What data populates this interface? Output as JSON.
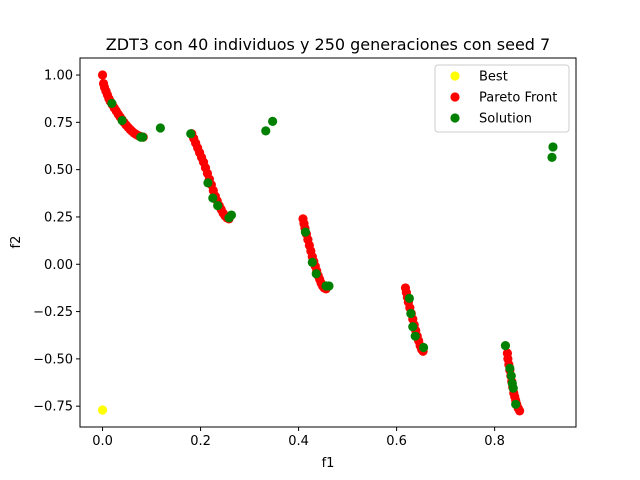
{
  "chart_data": {
    "type": "scatter",
    "title": "ZDT3 con 40 individuos y 250 generaciones con seed 7",
    "xlabel": "f1",
    "ylabel": "f2",
    "xlim": [
      -0.046,
      0.966
    ],
    "ylim": [
      -0.86,
      1.09
    ],
    "xticks": [
      0.0,
      0.2,
      0.4,
      0.6,
      0.8
    ],
    "xtick_labels": [
      "0.0",
      "0.2",
      "0.4",
      "0.6",
      "0.8"
    ],
    "yticks": [
      -0.75,
      -0.5,
      -0.25,
      0.0,
      0.25,
      0.5,
      0.75,
      1.0
    ],
    "ytick_labels": [
      "−0.75",
      "−0.50",
      "−0.25",
      "0.00",
      "0.25",
      "0.50",
      "0.75",
      "1.00"
    ],
    "grid": false,
    "legend_position": "top-right",
    "series": [
      {
        "name": "Best",
        "color": "#ffff00",
        "points": [
          [
            0.0,
            -0.77
          ]
        ]
      },
      {
        "name": "Pareto Front",
        "color": "#ff0000",
        "points": [
          [
            0.0,
            1.0
          ],
          [
            0.002,
            0.955
          ],
          [
            0.004,
            0.935
          ],
          [
            0.007,
            0.915
          ],
          [
            0.01,
            0.895
          ],
          [
            0.013,
            0.875
          ],
          [
            0.016,
            0.86
          ],
          [
            0.02,
            0.843
          ],
          [
            0.024,
            0.826
          ],
          [
            0.028,
            0.81
          ],
          [
            0.032,
            0.793
          ],
          [
            0.036,
            0.778
          ],
          [
            0.04,
            0.763
          ],
          [
            0.044,
            0.749
          ],
          [
            0.048,
            0.736
          ],
          [
            0.052,
            0.724
          ],
          [
            0.056,
            0.713
          ],
          [
            0.06,
            0.703
          ],
          [
            0.064,
            0.694
          ],
          [
            0.068,
            0.687
          ],
          [
            0.072,
            0.681
          ],
          [
            0.076,
            0.676
          ],
          [
            0.08,
            0.673
          ],
          [
            0.083,
            0.672
          ],
          [
            0.182,
            0.69
          ],
          [
            0.186,
            0.665
          ],
          [
            0.19,
            0.64
          ],
          [
            0.194,
            0.615
          ],
          [
            0.198,
            0.59
          ],
          [
            0.202,
            0.565
          ],
          [
            0.206,
            0.54
          ],
          [
            0.21,
            0.51
          ],
          [
            0.214,
            0.48
          ],
          [
            0.218,
            0.45
          ],
          [
            0.222,
            0.42
          ],
          [
            0.226,
            0.39
          ],
          [
            0.23,
            0.36
          ],
          [
            0.234,
            0.335
          ],
          [
            0.238,
            0.31
          ],
          [
            0.242,
            0.29
          ],
          [
            0.246,
            0.27
          ],
          [
            0.25,
            0.255
          ],
          [
            0.254,
            0.245
          ],
          [
            0.258,
            0.24
          ],
          [
            0.409,
            0.24
          ],
          [
            0.411,
            0.215
          ],
          [
            0.413,
            0.19
          ],
          [
            0.416,
            0.16
          ],
          [
            0.419,
            0.13
          ],
          [
            0.422,
            0.1
          ],
          [
            0.425,
            0.07
          ],
          [
            0.428,
            0.04
          ],
          [
            0.431,
            0.015
          ],
          [
            0.434,
            -0.01
          ],
          [
            0.437,
            -0.035
          ],
          [
            0.44,
            -0.06
          ],
          [
            0.443,
            -0.08
          ],
          [
            0.446,
            -0.1
          ],
          [
            0.449,
            -0.115
          ],
          [
            0.452,
            -0.125
          ],
          [
            0.456,
            -0.13
          ],
          [
            0.618,
            -0.125
          ],
          [
            0.62,
            -0.15
          ],
          [
            0.622,
            -0.175
          ],
          [
            0.624,
            -0.2
          ],
          [
            0.627,
            -0.23
          ],
          [
            0.63,
            -0.26
          ],
          [
            0.633,
            -0.29
          ],
          [
            0.636,
            -0.32
          ],
          [
            0.639,
            -0.35
          ],
          [
            0.642,
            -0.38
          ],
          [
            0.645,
            -0.405
          ],
          [
            0.648,
            -0.43
          ],
          [
            0.651,
            -0.45
          ],
          [
            0.654,
            -0.46
          ],
          [
            0.826,
            -0.47
          ],
          [
            0.827,
            -0.5
          ],
          [
            0.829,
            -0.53
          ],
          [
            0.831,
            -0.56
          ],
          [
            0.833,
            -0.59
          ],
          [
            0.835,
            -0.62
          ],
          [
            0.837,
            -0.65
          ],
          [
            0.839,
            -0.68
          ],
          [
            0.841,
            -0.7
          ],
          [
            0.843,
            -0.72
          ],
          [
            0.845,
            -0.74
          ],
          [
            0.848,
            -0.76
          ],
          [
            0.851,
            -0.775
          ]
        ]
      },
      {
        "name": "Solution",
        "color": "#008000",
        "points": [
          [
            0.019,
            0.85
          ],
          [
            0.04,
            0.76
          ],
          [
            0.078,
            0.672
          ],
          [
            0.082,
            0.672
          ],
          [
            0.118,
            0.72
          ],
          [
            0.18,
            0.69
          ],
          [
            0.215,
            0.43
          ],
          [
            0.225,
            0.35
          ],
          [
            0.235,
            0.31
          ],
          [
            0.258,
            0.245
          ],
          [
            0.263,
            0.26
          ],
          [
            0.333,
            0.705
          ],
          [
            0.347,
            0.755
          ],
          [
            0.414,
            0.17
          ],
          [
            0.428,
            0.01
          ],
          [
            0.436,
            -0.05
          ],
          [
            0.456,
            -0.115
          ],
          [
            0.462,
            -0.115
          ],
          [
            0.626,
            -0.18
          ],
          [
            0.629,
            -0.26
          ],
          [
            0.633,
            -0.33
          ],
          [
            0.638,
            -0.38
          ],
          [
            0.655,
            -0.44
          ],
          [
            0.822,
            -0.43
          ],
          [
            0.831,
            -0.55
          ],
          [
            0.834,
            -0.59
          ],
          [
            0.836,
            -0.63
          ],
          [
            0.838,
            -0.655
          ],
          [
            0.843,
            -0.74
          ],
          [
            0.917,
            0.565
          ],
          [
            0.919,
            0.62
          ]
        ]
      }
    ]
  }
}
